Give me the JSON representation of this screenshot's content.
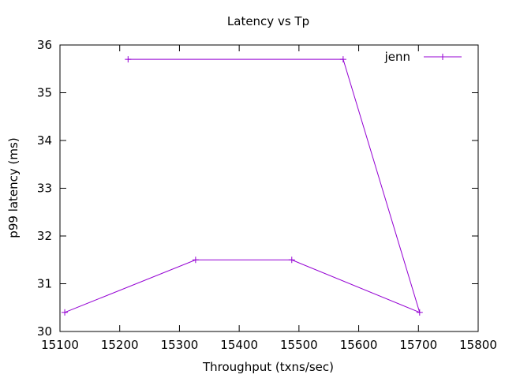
{
  "chart_data": {
    "type": "line",
    "title": "Latency vs Tp",
    "xlabel": "Throughput (txns/sec)",
    "ylabel": "p99 latency (ms)",
    "xlim": [
      15100,
      15800
    ],
    "ylim": [
      30,
      36
    ],
    "xticks": [
      15100,
      15200,
      15300,
      15400,
      15500,
      15600,
      15700,
      15800
    ],
    "yticks": [
      30,
      31,
      32,
      33,
      34,
      35,
      36
    ],
    "grid": false,
    "legend_position": "top-right",
    "series": [
      {
        "name": "jenn",
        "color": "#9400d3",
        "marker": "plus",
        "points": [
          {
            "x": 15108,
            "y": 30.4
          },
          {
            "x": 15327,
            "y": 31.5
          },
          {
            "x": 15488,
            "y": 31.5
          },
          {
            "x": 15702,
            "y": 30.4
          },
          {
            "x": 15574,
            "y": 35.7
          },
          {
            "x": 15214,
            "y": 35.7
          }
        ]
      }
    ]
  }
}
